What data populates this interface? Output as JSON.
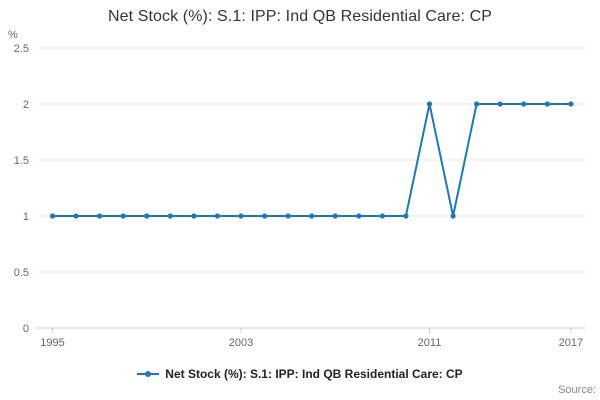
{
  "title": "Net Stock (%): S.1: IPP: Ind QB Residential Care: CP",
  "y_unit_label": "%",
  "source_label": "Source:",
  "legend": {
    "label": "Net Stock (%): S.1: IPP: Ind QB Residential Care: CP"
  },
  "colors": {
    "line": "#1f78b4",
    "grid": "#e6e6e6",
    "axis": "#cccccc",
    "tick_text": "#666666"
  },
  "chart_data": {
    "type": "line",
    "title": "Net Stock (%): S.1: IPP: Ind QB Residential Care: CP",
    "xlabel": "",
    "ylabel": "%",
    "x": [
      1995,
      1996,
      1997,
      1998,
      1999,
      2000,
      2001,
      2002,
      2003,
      2004,
      2005,
      2006,
      2007,
      2008,
      2009,
      2010,
      2011,
      2012,
      2013,
      2014,
      2015,
      2016,
      2017
    ],
    "series": [
      {
        "name": "Net Stock (%): S.1: IPP: Ind QB Residential Care: CP",
        "values": [
          1,
          1,
          1,
          1,
          1,
          1,
          1,
          1,
          1,
          1,
          1,
          1,
          1,
          1,
          1,
          1,
          2,
          1,
          2,
          2,
          2,
          2,
          2
        ]
      }
    ],
    "xlim": [
      1994.3,
      2017.6
    ],
    "ylim": [
      0,
      2.5
    ],
    "yticks": [
      0,
      0.5,
      1,
      1.5,
      2,
      2.5
    ],
    "xticks": [
      1995,
      2003,
      2011,
      2017
    ],
    "grid": true,
    "legend_position": "bottom"
  }
}
